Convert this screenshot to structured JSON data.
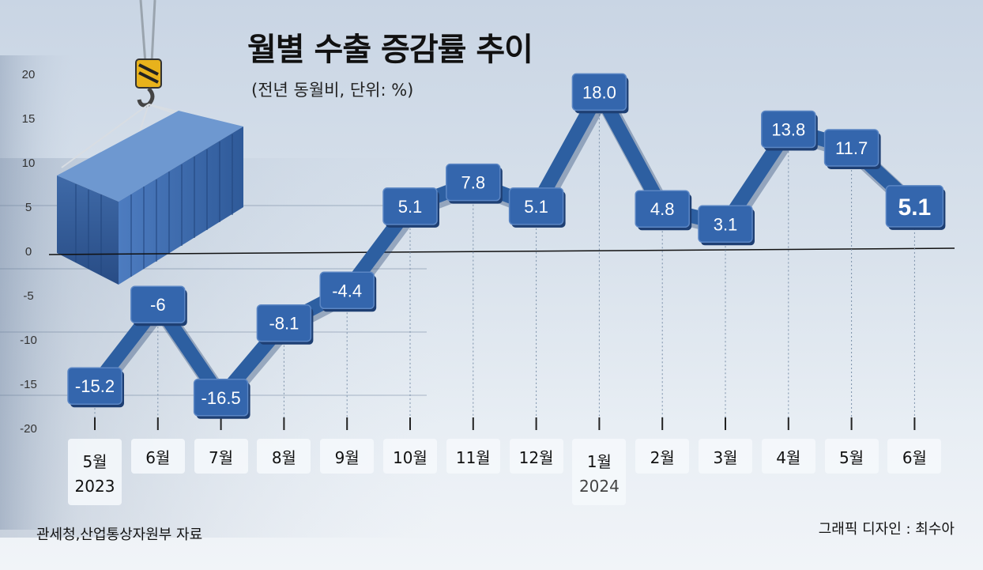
{
  "title": "월별 수출 증감률 추이",
  "subtitle": "(전년 동월비, 단위: %)",
  "source": "관세청,산업통상자원부 자료",
  "credit": "그래픽 디자인 : 최수아",
  "colors": {
    "line": "#2d5fa1",
    "box_face": "#3466ad",
    "box_edge": "#1e3f73",
    "label": "#ffffff"
  },
  "chart_data": {
    "type": "line",
    "title": "월별 수출 증감률 추이",
    "subtitle": "(전년 동월비, 단위: %)",
    "categories": [
      "5월",
      "6월",
      "7월",
      "8월",
      "9월",
      "10월",
      "11월",
      "12월",
      "1월",
      "2월",
      "3월",
      "4월",
      "5월",
      "6월"
    ],
    "year_labels": [
      {
        "index": 0,
        "label": "2023"
      },
      {
        "index": 8,
        "label": "2024"
      }
    ],
    "values": [
      -15.2,
      -6,
      -16.5,
      -8.1,
      -4.4,
      5.1,
      7.8,
      5.1,
      18.0,
      4.8,
      3.1,
      13.8,
      11.7,
      5.1
    ],
    "value_labels": [
      "-15.2",
      "-6",
      "-16.5",
      "-8.1",
      "-4.4",
      "5.1",
      "7.8",
      "5.1",
      "18.0",
      "4.8",
      "3.1",
      "13.8",
      "11.7",
      "5.1"
    ],
    "y_ticks": [
      "20",
      "15",
      "10",
      "5",
      "0",
      "-5",
      "-10",
      "-15",
      "-20"
    ],
    "ylim": [
      -20,
      20
    ],
    "grid": false,
    "highlight_last": true
  }
}
